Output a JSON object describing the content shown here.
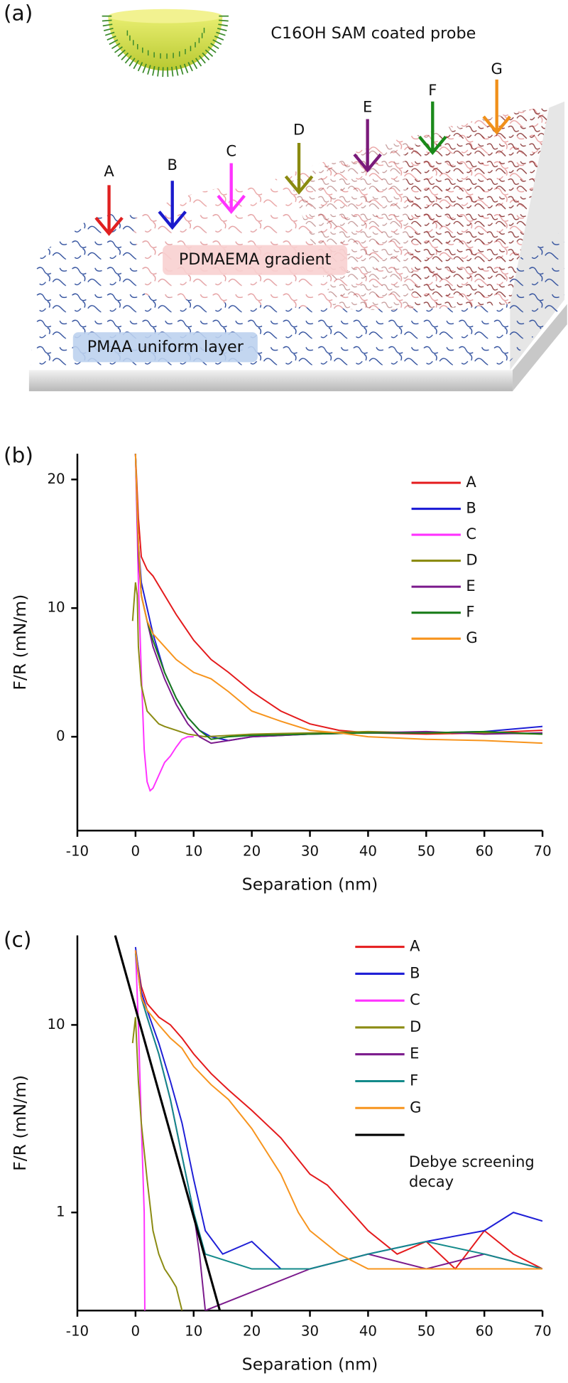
{
  "diagram": {
    "panel_label": "(a)",
    "probe": "C16OH SAM coated probe",
    "arrows": [
      "A",
      "B",
      "C",
      "D",
      "E",
      "F",
      "G"
    ],
    "gradient_label": "PDMAEMA gradient",
    "layer_label": "PMAA uniform layer"
  },
  "chart_data": [
    {
      "type": "line",
      "panel_label": "(b)",
      "x_label": "Separation (nm)",
      "y_label": "F/R (mN/m)",
      "xlim": [
        -10,
        70
      ],
      "xticks": [
        -10,
        0,
        10,
        20,
        30,
        40,
        50,
        60,
        70
      ],
      "ylim": [
        -7.3,
        22
      ],
      "yticks": [
        0,
        10,
        20
      ],
      "series": [
        {
          "name": "A",
          "color": "#e41a1c",
          "x": [
            0,
            0.5,
            1,
            2,
            3,
            5,
            7,
            10,
            13,
            16,
            20,
            25,
            30,
            35,
            40,
            50,
            60,
            70
          ],
          "values": [
            22,
            17,
            14,
            13,
            12.5,
            11,
            9.5,
            7.5,
            6,
            5,
            3.5,
            2,
            1,
            0.5,
            0.3,
            0.2,
            0.3,
            0.5
          ]
        },
        {
          "name": "B",
          "color": "#1f1fd6",
          "x": [
            0,
            0.5,
            1,
            2,
            3,
            5,
            7,
            9,
            11,
            13,
            16,
            20,
            30,
            40,
            50,
            60,
            70
          ],
          "values": [
            22,
            15,
            12,
            10,
            8,
            5,
            3,
            1.5,
            0.5,
            0,
            -0.3,
            0,
            0.2,
            0.3,
            0.3,
            0.4,
            0.8
          ]
        },
        {
          "name": "C",
          "color": "#ff33ff",
          "x": [
            0,
            0.5,
            1,
            1.5,
            2,
            2.5,
            3,
            4,
            5,
            6,
            7,
            8,
            9,
            10
          ],
          "values": [
            22,
            12,
            5,
            -1,
            -3.5,
            -4.2,
            -4,
            -3,
            -2,
            -1.5,
            -0.8,
            -0.2,
            0,
            0
          ]
        },
        {
          "name": "D",
          "color": "#8b8b12",
          "x": [
            -0.5,
            0,
            0.3,
            0.5,
            1,
            1.5,
            2,
            3,
            4,
            5,
            7,
            9,
            12,
            20,
            30,
            40,
            50,
            60,
            70
          ],
          "values": [
            9,
            12,
            11,
            7,
            4,
            3,
            2,
            1.5,
            1,
            0.8,
            0.5,
            0.2,
            0,
            0.2,
            0.3,
            0.4,
            0.3,
            0.3,
            0.2
          ]
        },
        {
          "name": "E",
          "color": "#7b1a8c",
          "x": [
            0,
            0.5,
            1,
            2,
            3,
            5,
            7,
            9,
            11,
            13,
            16,
            20,
            30,
            40,
            50,
            60,
            70
          ],
          "values": [
            22,
            14,
            11,
            9,
            7,
            4.5,
            2.5,
            1,
            0,
            -0.5,
            -0.3,
            0,
            0.2,
            0.3,
            0.4,
            0.2,
            0.3
          ]
        },
        {
          "name": "F",
          "color": "#1a7d1a",
          "x": [
            0,
            0.5,
            1,
            2,
            3,
            5,
            7,
            9,
            11,
            13,
            16,
            20,
            30,
            40,
            50,
            60,
            70
          ],
          "values": [
            22,
            15,
            11,
            9,
            7.5,
            5,
            3,
            1.5,
            0.5,
            -0.2,
            0,
            0.1,
            0.2,
            0.3,
            0.3,
            0.4,
            0.2
          ]
        },
        {
          "name": "G",
          "color": "#f7941d",
          "x": [
            0,
            0.5,
            1,
            2,
            3,
            5,
            7,
            10,
            13,
            16,
            20,
            25,
            30,
            35,
            40,
            50,
            60,
            70
          ],
          "values": [
            22,
            15,
            11,
            9,
            8,
            7,
            6,
            5,
            4.5,
            3.5,
            2,
            1.2,
            0.5,
            0.3,
            0,
            -0.2,
            -0.3,
            -0.5
          ]
        }
      ]
    },
    {
      "type": "line",
      "panel_label": "(c)",
      "x_label": "Separation (nm)",
      "y_label": "F/R (mN/m)",
      "yscale": "log",
      "xlim": [
        -10,
        70
      ],
      "xticks": [
        -10,
        0,
        10,
        20,
        30,
        40,
        50,
        60,
        70
      ],
      "ylim": [
        0.3,
        30
      ],
      "yticks": [
        1,
        10
      ],
      "series": [
        {
          "name": "A",
          "color": "#e41a1c",
          "x": [
            0,
            1,
            2,
            4,
            6,
            8,
            10,
            13,
            16,
            20,
            25,
            30,
            33,
            36,
            40,
            45,
            50,
            55,
            60,
            65,
            70
          ],
          "values": [
            25,
            16,
            13,
            11,
            10,
            8.5,
            7,
            5.5,
            4.5,
            3.5,
            2.5,
            1.6,
            1.4,
            1.1,
            0.8,
            0.6,
            0.7,
            0.5,
            0.8,
            0.6,
            0.5
          ]
        },
        {
          "name": "B",
          "color": "#1f1fd6",
          "x": [
            0,
            1,
            2,
            4,
            6,
            8,
            10,
            12,
            15,
            20,
            25,
            30,
            40,
            50,
            60,
            65,
            70
          ],
          "values": [
            26,
            15,
            12,
            8,
            5,
            3,
            1.5,
            0.8,
            0.6,
            0.7,
            0.5,
            0.5,
            0.6,
            0.7,
            0.8,
            1,
            0.9
          ]
        },
        {
          "name": "C",
          "color": "#ff33ff",
          "x": [
            0,
            0.5,
            1,
            1.5,
            1.6
          ],
          "values": [
            25,
            10,
            3,
            1,
            0.3
          ]
        },
        {
          "name": "D",
          "color": "#8b8b12",
          "x": [
            -0.5,
            0,
            0.5,
            1,
            2,
            3,
            4,
            5,
            6,
            7,
            8
          ],
          "values": [
            8,
            11,
            5,
            3,
            1.5,
            0.8,
            0.6,
            0.5,
            0.45,
            0.4,
            0.3
          ]
        },
        {
          "name": "E",
          "color": "#7b1a8c",
          "x": [
            0,
            1,
            2,
            4,
            6,
            8,
            10,
            11,
            12,
            30,
            40,
            50,
            60,
            70
          ],
          "values": [
            25,
            14,
            11,
            7,
            4,
            2,
            1,
            0.6,
            0.3,
            0.5,
            0.6,
            0.5,
            0.6,
            0.5
          ]
        },
        {
          "name": "F",
          "color": "#138a8a",
          "x": [
            0,
            1,
            2,
            4,
            6,
            8,
            10,
            12,
            20,
            30,
            40,
            50,
            60,
            70
          ],
          "values": [
            24,
            14,
            11,
            7,
            4,
            2,
            1,
            0.6,
            0.5,
            0.5,
            0.6,
            0.7,
            0.6,
            0.5
          ]
        },
        {
          "name": "G",
          "color": "#f7941d",
          "x": [
            0,
            1,
            2,
            4,
            6,
            8,
            10,
            13,
            16,
            20,
            25,
            28,
            30,
            35,
            40,
            50,
            60,
            70
          ],
          "values": [
            25,
            14,
            12,
            10,
            8.5,
            7.5,
            6,
            4.8,
            4,
            2.8,
            1.6,
            1,
            0.8,
            0.6,
            0.5,
            0.5,
            0.5,
            0.5
          ]
        },
        {
          "name": "Debye screening decay",
          "color": "#000000",
          "x": [
            -3.5,
            14.5
          ],
          "values": [
            30,
            0.3
          ]
        }
      ]
    }
  ]
}
